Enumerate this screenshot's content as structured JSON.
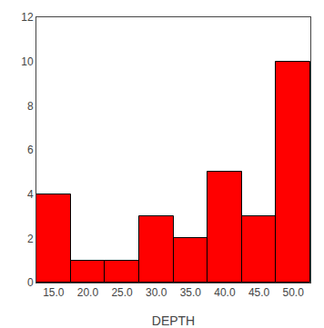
{
  "chart_data": {
    "type": "histogram",
    "bins": [
      12.5,
      17.5,
      22.5,
      27.5,
      32.5,
      37.5,
      42.5,
      47.5,
      52.5
    ],
    "values": [
      4,
      1,
      1,
      3,
      2,
      5,
      3,
      10
    ],
    "color": "#ff0000",
    "xlabel": "DEPTH",
    "xlim": [
      12.5,
      52.5
    ],
    "ylim": [
      0,
      12
    ],
    "xticks": [
      {
        "value": 15.0,
        "label": "15.0"
      },
      {
        "value": 20.0,
        "label": "20.0"
      },
      {
        "value": 25.0,
        "label": "25.0"
      },
      {
        "value": 30.0,
        "label": "30.0"
      },
      {
        "value": 35.0,
        "label": "35.0"
      },
      {
        "value": 40.0,
        "label": "40.0"
      },
      {
        "value": 45.0,
        "label": "45.0"
      },
      {
        "value": 50.0,
        "label": "50.0"
      }
    ],
    "yticks": [
      0,
      2,
      4,
      6,
      8,
      10,
      12
    ],
    "grid": false
  }
}
